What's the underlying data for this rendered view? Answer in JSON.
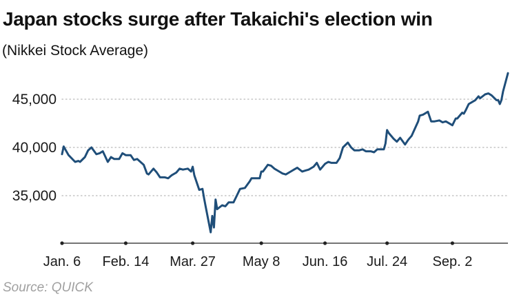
{
  "header": {
    "title": "Japan stocks surge after Takaichi's election win",
    "subtitle": "(Nikkei Stock Average)"
  },
  "footer": {
    "source": "Source: QUICK"
  },
  "colors": {
    "line": "#1f4e79",
    "grid": "#b8b8b8",
    "axis": "#222222"
  },
  "chart_data": {
    "type": "line",
    "title": "Japan stocks surge after Takaichi's election win",
    "subtitle": "(Nikkei Stock Average)",
    "xlabel": "",
    "ylabel": "",
    "grid": "horizontal dotted",
    "legend": "none",
    "x_range": [
      "2025-01-06",
      "2025-10-06"
    ],
    "ylim": [
      30000,
      48000
    ],
    "yticks": [
      35000,
      40000,
      45000
    ],
    "ytick_labels": [
      "35,000",
      "40,000",
      "45,000"
    ],
    "xticks": [
      "2025-01-06",
      "2025-02-14",
      "2025-03-27",
      "2025-05-08",
      "2025-06-16",
      "2025-07-24",
      "2025-09-02"
    ],
    "xtick_labels": [
      "Jan. 6",
      "Feb. 14",
      "Mar. 27",
      "May 8",
      "Jun. 16",
      "Jul. 24",
      "Sep. 2"
    ],
    "series": [
      {
        "x": [
          "2025-01-06",
          "2025-01-07",
          "2025-01-08",
          "2025-01-10",
          "2025-01-14",
          "2025-01-16",
          "2025-01-17",
          "2025-01-20",
          "2025-01-22",
          "2025-01-24",
          "2025-01-27",
          "2025-01-29",
          "2025-01-31",
          "2025-02-03",
          "2025-02-05",
          "2025-02-07",
          "2025-02-10",
          "2025-02-12",
          "2025-02-14",
          "2025-02-17",
          "2025-02-19",
          "2025-02-21",
          "2025-02-25",
          "2025-02-27",
          "2025-02-28",
          "2025-03-03",
          "2025-03-05",
          "2025-03-07",
          "2025-03-10",
          "2025-03-12",
          "2025-03-14",
          "2025-03-17",
          "2025-03-19",
          "2025-03-21",
          "2025-03-24",
          "2025-03-26",
          "2025-03-27",
          "2025-03-28",
          "2025-03-31",
          "2025-04-02",
          "2025-04-03",
          "2025-04-04",
          "2025-04-07",
          "2025-04-08",
          "2025-04-09",
          "2025-04-10",
          "2025-04-11",
          "2025-04-14",
          "2025-04-16",
          "2025-04-18",
          "2025-04-21",
          "2025-04-23",
          "2025-04-25",
          "2025-04-28",
          "2025-05-01",
          "2025-05-02",
          "2025-05-07",
          "2025-05-08",
          "2025-05-09",
          "2025-05-12",
          "2025-05-14",
          "2025-05-16",
          "2025-05-19",
          "2025-05-21",
          "2025-05-23",
          "2025-05-26",
          "2025-05-28",
          "2025-05-30",
          "2025-06-02",
          "2025-06-04",
          "2025-06-06",
          "2025-06-09",
          "2025-06-11",
          "2025-06-13",
          "2025-06-16",
          "2025-06-18",
          "2025-06-20",
          "2025-06-23",
          "2025-06-25",
          "2025-06-27",
          "2025-06-30",
          "2025-07-02",
          "2025-07-04",
          "2025-07-07",
          "2025-07-09",
          "2025-07-11",
          "2025-07-14",
          "2025-07-16",
          "2025-07-18",
          "2025-07-22",
          "2025-07-23",
          "2025-07-24",
          "2025-07-25",
          "2025-07-28",
          "2025-07-30",
          "2025-08-01",
          "2025-08-04",
          "2025-08-06",
          "2025-08-08",
          "2025-08-12",
          "2025-08-13",
          "2025-08-15",
          "2025-08-18",
          "2025-08-20",
          "2025-08-22",
          "2025-08-25",
          "2025-08-27",
          "2025-08-29",
          "2025-09-01",
          "2025-09-02",
          "2025-09-04",
          "2025-09-05",
          "2025-09-08",
          "2025-09-09",
          "2025-09-10",
          "2025-09-12",
          "2025-09-16",
          "2025-09-18",
          "2025-09-19",
          "2025-09-22",
          "2025-09-24",
          "2025-09-26",
          "2025-09-29",
          "2025-09-30",
          "2025-10-01",
          "2025-10-02",
          "2025-10-03",
          "2025-10-06"
        ],
        "values": [
          39300,
          40100,
          39800,
          39200,
          38500,
          38600,
          38500,
          39000,
          39700,
          40000,
          39300,
          39400,
          39600,
          38500,
          39000,
          38800,
          38800,
          39400,
          39200,
          39200,
          38700,
          38800,
          38200,
          37300,
          37200,
          37800,
          37400,
          36900,
          36900,
          36800,
          37100,
          37400,
          37800,
          37700,
          37800,
          37500,
          38000,
          37100,
          35600,
          35700,
          34700,
          33800,
          31200,
          32900,
          31700,
          34600,
          33600,
          34000,
          33900,
          34300,
          34300,
          35000,
          35700,
          35800,
          36500,
          36800,
          36800,
          37500,
          37500,
          38200,
          38100,
          37800,
          37500,
          37300,
          37200,
          37500,
          37700,
          37900,
          37500,
          37600,
          37700,
          38000,
          38400,
          37700,
          38300,
          38500,
          38400,
          38400,
          38900,
          40000,
          40500,
          40000,
          39700,
          39700,
          39800,
          39600,
          39600,
          39500,
          39800,
          39800,
          40400,
          41800,
          41500,
          40900,
          40600,
          41000,
          40300,
          40800,
          41200,
          42700,
          43300,
          43400,
          43700,
          42700,
          42700,
          42800,
          42600,
          42700,
          42400,
          42300,
          43000,
          43000,
          43600,
          43500,
          43800,
          44500,
          44900,
          45300,
          45100,
          45500,
          45600,
          45400,
          44900,
          44900,
          44500,
          44900,
          45800,
          47700
        ]
      }
    ]
  }
}
